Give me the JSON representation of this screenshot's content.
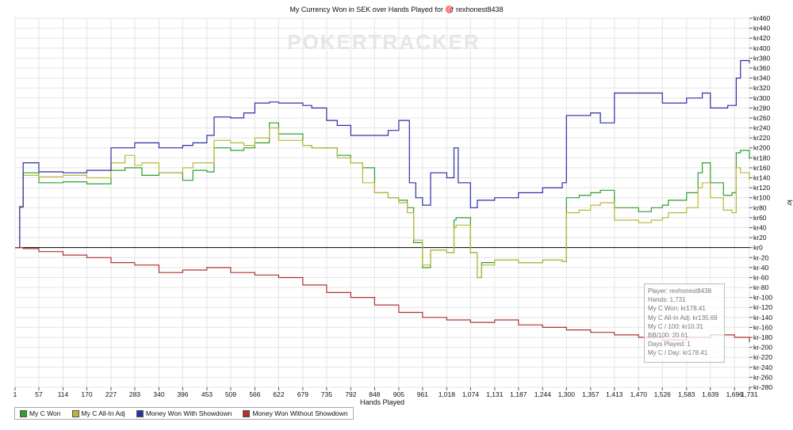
{
  "chart_data": {
    "type": "line",
    "title": "My Currency Won in SEK over Hands Played for 🎯 rexhonest8438",
    "xlabel": "Hands Played",
    "ylabel": "kr",
    "xlim": [
      1,
      1731
    ],
    "ylim": [
      -280,
      460
    ],
    "x_ticks": [
      "1",
      "57",
      "114",
      "170",
      "227",
      "283",
      "340",
      "396",
      "453",
      "509",
      "566",
      "622",
      "679",
      "735",
      "792",
      "848",
      "905",
      "961",
      "1,018",
      "1,074",
      "1,131",
      "1,187",
      "1,244",
      "1,300",
      "1,357",
      "1,413",
      "1,470",
      "1,526",
      "1,583",
      "1,639",
      "1,696",
      "1,731"
    ],
    "y_ticks": [
      "kr460",
      "kr440",
      "kr420",
      "kr400",
      "kr380",
      "kr360",
      "kr340",
      "kr320",
      "kr300",
      "kr280",
      "kr260",
      "kr240",
      "kr220",
      "kr200",
      "kr180",
      "kr160",
      "kr140",
      "kr120",
      "kr100",
      "kr80",
      "kr60",
      "kr40",
      "kr20",
      "kr0",
      "kr-20",
      "kr-40",
      "kr-60",
      "kr-80",
      "kr-100",
      "kr-120",
      "kr-140",
      "kr-160",
      "kr-180",
      "kr-200",
      "kr-220",
      "kr-240",
      "kr-260",
      "kr-280"
    ],
    "series": [
      {
        "name": "My C Won",
        "color": "#2e9e2e",
        "x": [
          1,
          12,
          20,
          57,
          114,
          170,
          227,
          260,
          283,
          300,
          340,
          396,
          420,
          453,
          470,
          509,
          540,
          566,
          600,
          622,
          679,
          700,
          735,
          760,
          792,
          820,
          848,
          880,
          905,
          925,
          940,
          961,
          980,
          1018,
          1035,
          1040,
          1074,
          1080,
          1090,
          1100,
          1131,
          1187,
          1244,
          1290,
          1300,
          1330,
          1357,
          1380,
          1413,
          1440,
          1470,
          1500,
          1526,
          1540,
          1583,
          1610,
          1620,
          1639,
          1670,
          1690,
          1700,
          1710,
          1731
        ],
        "y": [
          0,
          82,
          150,
          130,
          132,
          128,
          155,
          160,
          160,
          145,
          150,
          135,
          155,
          152,
          200,
          195,
          200,
          210,
          250,
          228,
          205,
          200,
          200,
          185,
          170,
          160,
          110,
          100,
          95,
          80,
          10,
          -40,
          -5,
          -10,
          55,
          60,
          -10,
          -10,
          -60,
          -30,
          -25,
          -30,
          -25,
          -28,
          100,
          105,
          110,
          115,
          80,
          80,
          72,
          80,
          85,
          95,
          110,
          150,
          170,
          130,
          105,
          110,
          190,
          195,
          178.41
        ]
      },
      {
        "name": "My C All-In Adj",
        "color": "#b8b838",
        "x": [
          1,
          12,
          20,
          57,
          114,
          170,
          227,
          260,
          283,
          300,
          340,
          396,
          420,
          453,
          470,
          509,
          540,
          566,
          600,
          622,
          679,
          700,
          735,
          760,
          792,
          820,
          848,
          880,
          905,
          925,
          940,
          961,
          980,
          1018,
          1035,
          1040,
          1074,
          1080,
          1090,
          1100,
          1131,
          1187,
          1244,
          1290,
          1300,
          1330,
          1357,
          1380,
          1413,
          1440,
          1470,
          1500,
          1526,
          1540,
          1583,
          1610,
          1620,
          1639,
          1670,
          1690,
          1700,
          1710,
          1731
        ],
        "y": [
          0,
          80,
          145,
          142,
          145,
          140,
          170,
          185,
          165,
          170,
          150,
          160,
          170,
          170,
          215,
          210,
          205,
          220,
          240,
          215,
          205,
          200,
          200,
          180,
          170,
          130,
          110,
          100,
          90,
          70,
          15,
          -35,
          -5,
          -10,
          40,
          45,
          -10,
          -10,
          -60,
          -35,
          -25,
          -30,
          -25,
          -28,
          70,
          75,
          85,
          90,
          55,
          55,
          50,
          55,
          60,
          70,
          80,
          120,
          130,
          100,
          75,
          70,
          160,
          150,
          135.69
        ]
      },
      {
        "name": "Money Won With Showdown",
        "color": "#2e2ea8",
        "x": [
          1,
          12,
          20,
          57,
          114,
          170,
          227,
          283,
          340,
          396,
          420,
          453,
          470,
          509,
          540,
          566,
          600,
          622,
          679,
          700,
          735,
          760,
          792,
          820,
          848,
          880,
          905,
          930,
          945,
          961,
          980,
          1018,
          1035,
          1045,
          1074,
          1090,
          1131,
          1187,
          1244,
          1290,
          1300,
          1357,
          1380,
          1413,
          1470,
          1526,
          1583,
          1620,
          1639,
          1680,
          1700,
          1710,
          1731
        ],
        "y": [
          0,
          82,
          170,
          152,
          150,
          155,
          200,
          210,
          200,
          205,
          210,
          225,
          262,
          260,
          270,
          290,
          292,
          290,
          285,
          280,
          255,
          245,
          225,
          225,
          225,
          235,
          255,
          130,
          100,
          85,
          150,
          140,
          200,
          130,
          80,
          95,
          100,
          110,
          120,
          130,
          265,
          270,
          250,
          310,
          310,
          290,
          300,
          310,
          280,
          285,
          340,
          375,
          370
        ]
      },
      {
        "name": "Money Won Without Showdown",
        "color": "#b03030",
        "x": [
          1,
          20,
          57,
          114,
          170,
          227,
          283,
          340,
          396,
          453,
          509,
          566,
          622,
          679,
          735,
          792,
          848,
          905,
          961,
          1018,
          1074,
          1131,
          1187,
          1244,
          1300,
          1357,
          1413,
          1470,
          1526,
          1583,
          1639,
          1696,
          1731
        ],
        "y": [
          0,
          -2,
          -8,
          -15,
          -20,
          -30,
          -35,
          -50,
          -45,
          -40,
          -50,
          -55,
          -60,
          -75,
          -90,
          -100,
          -115,
          -130,
          -140,
          -145,
          -150,
          -145,
          -155,
          -160,
          -165,
          -170,
          -175,
          -180,
          -185,
          -180,
          -175,
          -180,
          -190
        ]
      }
    ],
    "legend_position": "bottom-left",
    "grid": true
  },
  "watermark": "POKERTRACKER",
  "tooltip": {
    "lines": [
      "Player: rexhonest8438",
      "Hands: 1,731",
      "My C Won: kr178.41",
      "My C All-In Adj: kr135.69",
      "My C / 100: kr10.31",
      "BB/100: 20.61",
      "Days Played: 1",
      "My C / Day: kr178.41"
    ]
  },
  "colors": {
    "zero_line": "#000000",
    "grid": "#e4e4e4"
  }
}
